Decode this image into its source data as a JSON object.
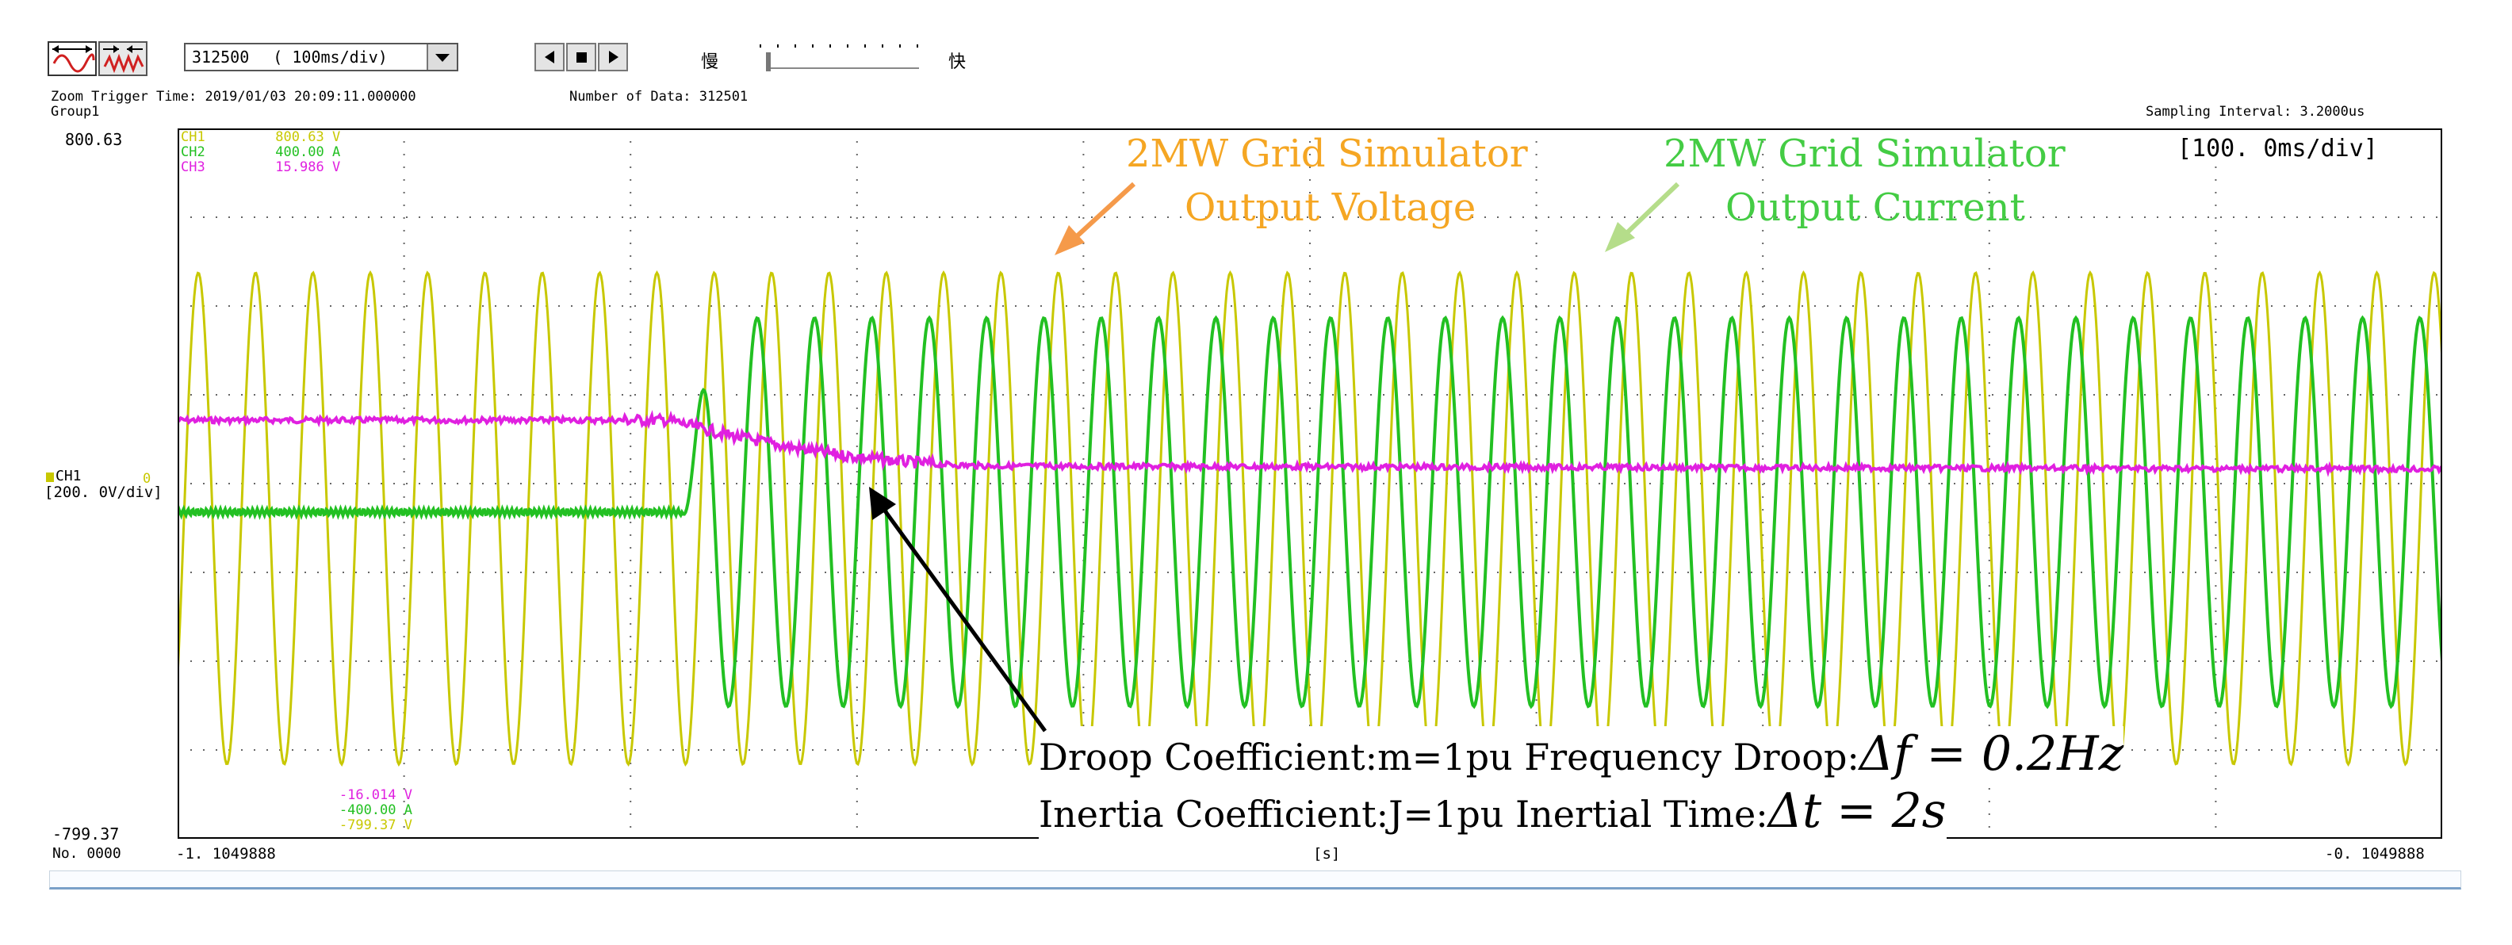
{
  "toolbar": {
    "data_count_value": "312500",
    "timebase_select": "( 100ms/div)",
    "speed_slow": "慢",
    "speed_fast": "快"
  },
  "header": {
    "zoom_trigger": "Zoom Trigger Time: 2019/01/03 20:09:11.000000",
    "number_of_data": "Number of Data: 312501",
    "group": "Group1",
    "sampling": "Sampling Interval:  3.2000us"
  },
  "scope": {
    "y_top": "800.63",
    "y_bottom": "-799.37",
    "div_label": "[100. 0ms/div]",
    "ch1_marker": "CH1",
    "ch1_scale": "[200. 0V/div]",
    "zero_mark": "0",
    "x_left": "-1. 1049888",
    "x_mid": "[s]",
    "x_right": "-0. 1049888",
    "no_label": "No. 0000"
  },
  "channels_top": [
    {
      "name": "CH1",
      "value": "800.63",
      "unit": "V",
      "color": "#c8c800"
    },
    {
      "name": "CH2",
      "value": "400.00",
      "unit": "A",
      "color": "#22c022"
    },
    {
      "name": "CH3",
      "value": "15.986",
      "unit": "V",
      "color": "#e020e0"
    }
  ],
  "channels_bottom": [
    {
      "value": "-16.014",
      "unit": "V",
      "color": "#e020e0"
    },
    {
      "value": "-400.00",
      "unit": "A",
      "color": "#22c022"
    },
    {
      "value": "-799.37",
      "unit": "V",
      "color": "#c8c800"
    }
  ],
  "annotations": {
    "voltage_line1": "2MW Grid Simulator",
    "voltage_line2": "Output Voltage",
    "current_line1": "2MW Grid Simulator",
    "current_line2": "Output Current",
    "droop_line": "Droop Coefficient:m=1pu  Frequency Droop:",
    "droop_math": "Δf = 0.2Hz",
    "inertia_line": "Inertia Coefficient:J=1pu  Inertial Time:",
    "inertia_math": "Δt = 2s"
  },
  "colors": {
    "voltage": "#c8c800",
    "current": "#22c022",
    "ch3": "#e020e0",
    "voltage_annotation": "#f5a623",
    "current_annotation": "#44cc44",
    "voltage_arrow": "#f59a4a",
    "current_arrow": "#b5dd8a"
  },
  "icons": [
    "analog-waveform-icon",
    "digital-waveform-icon",
    "drop-down-icon",
    "step-back-icon",
    "stop-icon",
    "step-forward-icon"
  ]
}
